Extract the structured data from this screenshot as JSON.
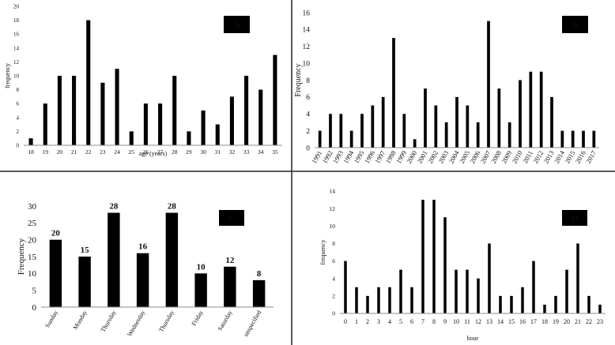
{
  "colors": {
    "bar": "#000000",
    "axis": "#8c8c8c",
    "divider": "#222222",
    "panel_label_bg": "#000000",
    "panel_label_text": "#ffffff"
  },
  "chart_data": [
    {
      "panel": "A",
      "type": "bar",
      "title": "",
      "xlabel": "age (years)",
      "ylabel": "frequency",
      "ylim": [
        0,
        20
      ],
      "yticks": [
        0,
        2,
        4,
        6,
        8,
        10,
        12,
        14,
        16,
        18,
        20
      ],
      "categories": [
        "18",
        "19",
        "20",
        "21",
        "22",
        "23",
        "24",
        "25",
        "26",
        "27",
        "28",
        "29",
        "30",
        "31",
        "32",
        "33",
        "34",
        "35"
      ],
      "values": [
        1,
        6,
        10,
        10,
        18,
        9,
        11,
        2,
        6,
        6,
        10,
        2,
        5,
        3,
        7,
        10,
        8,
        13
      ],
      "grid": false,
      "legend": "none"
    },
    {
      "panel": "B",
      "type": "bar",
      "title": "",
      "xlabel": "",
      "ylabel": "Frequency",
      "ylim": [
        0,
        16
      ],
      "yticks": [
        0,
        2,
        4,
        6,
        8,
        10,
        12,
        14,
        16
      ],
      "categories": [
        "1991",
        "1992",
        "1993",
        "1994",
        "1995",
        "1996",
        "1997",
        "1998",
        "1999",
        "2000",
        "2001",
        "2002",
        "2003",
        "2004",
        "2005",
        "2006",
        "2007",
        "2008",
        "2009",
        "2010",
        "2011",
        "2012",
        "2013",
        "2014",
        "2015",
        "2016",
        "2017"
      ],
      "values": [
        2,
        4,
        4,
        2,
        4,
        5,
        6,
        13,
        4,
        1,
        7,
        5,
        3,
        6,
        5,
        3,
        15,
        7,
        3,
        8,
        9,
        9,
        6,
        2,
        2,
        2,
        2
      ],
      "grid": false,
      "legend": "none"
    },
    {
      "panel": "C",
      "type": "bar",
      "title": "",
      "xlabel": "",
      "ylabel": "Frequency",
      "ylim": [
        0,
        30
      ],
      "yticks": [
        0,
        5,
        10,
        15,
        20,
        25,
        30
      ],
      "categories": [
        "Sunday",
        "Monday",
        "Thursday",
        "Wednesday",
        "Thursday",
        "Friday",
        "Saturday",
        "unspecified"
      ],
      "values": [
        20,
        15,
        28,
        16,
        28,
        10,
        12,
        8
      ],
      "data_labels": true,
      "grid": false,
      "legend": "none"
    },
    {
      "panel": "D",
      "type": "bar",
      "title": "",
      "xlabel": "hour",
      "ylabel": "frequency",
      "ylim": [
        0,
        14
      ],
      "yticks": [
        0,
        2,
        4,
        6,
        8,
        10,
        12,
        14
      ],
      "categories": [
        "0",
        "1",
        "2",
        "3",
        "4",
        "5",
        "6",
        "7",
        "8",
        "9",
        "10",
        "11",
        "12",
        "13",
        "14",
        "15",
        "16",
        "17",
        "18",
        "19",
        "20",
        "21",
        "22",
        "23"
      ],
      "values": [
        6,
        3,
        2,
        3,
        3,
        5,
        3,
        13,
        13,
        11,
        5,
        5,
        4,
        8,
        2,
        2,
        3,
        6,
        1,
        2,
        5,
        8,
        2,
        1
      ],
      "grid": false,
      "legend": "none"
    }
  ]
}
